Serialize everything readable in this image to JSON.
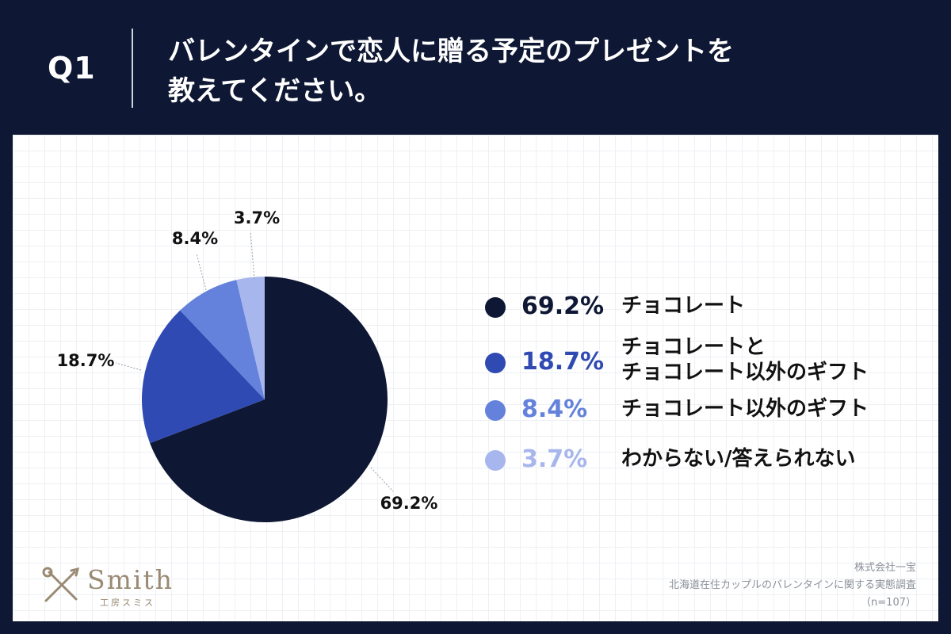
{
  "header": {
    "question": "Q1",
    "title_line1": "バレンタインで恋人に贈る予定のプレゼントを",
    "title_line2": "教えてください。"
  },
  "chart_data": {
    "type": "pie",
    "title": "バレンタインで恋人に贈る予定のプレゼントを教えてください。",
    "categories": [
      "チョコレート",
      "チョコレートとチョコレート以外のギフト",
      "チョコレート以外のギフト",
      "わからない/答えられない"
    ],
    "values": [
      69.2,
      18.7,
      8.4,
      3.7
    ],
    "value_labels": [
      "69.2%",
      "18.7%",
      "8.4%",
      "3.7%"
    ],
    "colors": [
      "#0e1733",
      "#2f4ab3",
      "#6482db",
      "#a7b6ec"
    ],
    "start_angle_deg": 0,
    "direction": "clockwise"
  },
  "legend": [
    {
      "pct": "69.2%",
      "line1": "チョコレート",
      "line2": "",
      "color": "#0e1733"
    },
    {
      "pct": "18.7%",
      "line1": "チョコレートと",
      "line2": "チョコレート以外のギフト",
      "color": "#2f4ab3"
    },
    {
      "pct": "8.4%",
      "line1": "チョコレート以外のギフト",
      "line2": "",
      "color": "#6482db"
    },
    {
      "pct": "3.7%",
      "line1": "わからない/答えられない",
      "line2": "",
      "color": "#a7b6ec"
    }
  ],
  "logo": {
    "name": "Smith",
    "sub": "工房スミス"
  },
  "source": {
    "company": "株式会社一宝",
    "survey": "北海道在住カップルのバレンタインに関する実態調査",
    "sample": "（n=107）"
  }
}
